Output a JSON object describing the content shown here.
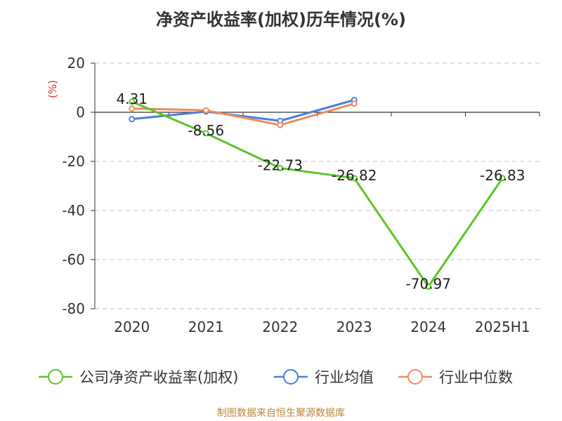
{
  "title": "净资产收益率(加权)历年情况(%)",
  "source": "制图数据来自恒生聚源数据库",
  "chart_data": {
    "type": "line",
    "title": "净资产收益率(加权)历年情况(%)",
    "ylabel": "(%)",
    "categories": [
      "2020",
      "2021",
      "2022",
      "2023",
      "2024",
      "2025H1"
    ],
    "ylim": [
      -80,
      20
    ],
    "yticks": [
      "20",
      "0",
      "-20",
      "-40",
      "-60",
      "-80"
    ],
    "grid": true,
    "legend_position": "bottom",
    "series": [
      {
        "name": "公司净资产收益率(加权)",
        "color": "#5ec42a",
        "values": [
          4.31,
          -8.56,
          -22.73,
          -26.82,
          -70.97,
          -26.83
        ],
        "labels": [
          "4.31",
          "-8.56",
          "-22.73",
          "-26.82",
          "-70.97",
          "-26.83"
        ]
      },
      {
        "name": "行业均值",
        "color": "#4a7fdc",
        "values": [
          -2.8,
          0.3,
          -3.5,
          5.0,
          null,
          null
        ]
      },
      {
        "name": "行业中位数",
        "color": "#f08c5a",
        "values": [
          1.5,
          0.8,
          -5.2,
          3.5,
          null,
          null
        ]
      }
    ]
  }
}
